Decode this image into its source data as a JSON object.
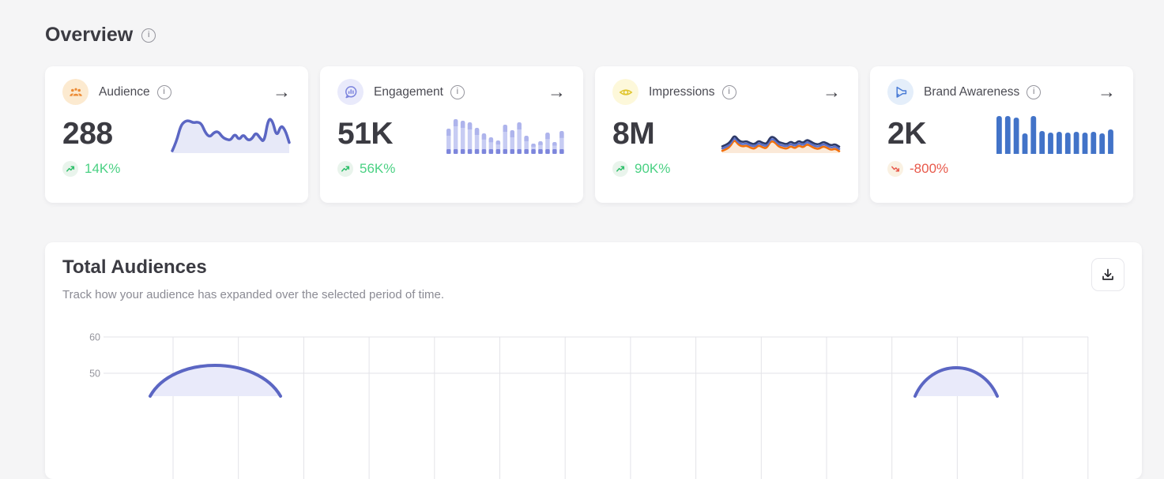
{
  "page": {
    "title": "Overview"
  },
  "stat_cards": [
    {
      "label": "Audience",
      "icon": "audience-icon",
      "value": "288",
      "change": "14K%",
      "trend": "up",
      "spark": {
        "type": "area",
        "color": "#5b66c3",
        "fill": "#e7e9f8",
        "values": [
          6,
          30,
          72,
          84,
          86,
          80,
          82,
          78,
          52,
          42,
          55,
          57,
          42,
          36,
          34,
          52,
          34,
          50,
          34,
          36,
          55,
          40,
          28,
          92,
          86,
          42,
          74,
          62,
          28
        ]
      }
    },
    {
      "label": "Engagement",
      "icon": "engagement-icon",
      "value": "51K",
      "change": "56K%",
      "trend": "up",
      "spark": {
        "type": "stacked-bars",
        "color": "#c7ccf3",
        "cap_color": "#aeb4ec",
        "base_color": "#7d86dc",
        "values": [
          64,
          88,
          84,
          80,
          66,
          52,
          42,
          34,
          74,
          60,
          80,
          46,
          26,
          32,
          54,
          30,
          58
        ]
      }
    },
    {
      "label": "Impressions",
      "icon": "impressions-icon",
      "value": "8M",
      "change": "90K%",
      "trend": "up",
      "spark": {
        "type": "multi-line",
        "series": [
          {
            "name": "orange",
            "color": "#f2700c",
            "fill": "#fbe9d8",
            "values": [
              6,
              10,
              18,
              36,
              22,
              17,
              20,
              14,
              11,
              21,
              15,
              12,
              32,
              29,
              17,
              14,
              11,
              19,
              12,
              21,
              14,
              24,
              18,
              12,
              11,
              18,
              14,
              8,
              12,
              5
            ]
          },
          {
            "name": "blue",
            "color": "#5b70c9",
            "values": [
              12,
              16,
              24,
              42,
              28,
              23,
              26,
              20,
              17,
              27,
              21,
              18,
              38,
              35,
              23,
              20,
              17,
              25,
              18,
              27,
              20,
              30,
              24,
              18,
              17,
              24,
              20,
              14,
              18,
              11
            ]
          },
          {
            "name": "navy",
            "color": "#2e3a68",
            "values": [
              18,
              22,
              30,
              48,
              34,
              29,
              32,
              26,
              23,
              33,
              27,
              24,
              44,
              41,
              29,
              26,
              23,
              31,
              24,
              33,
              26,
              36,
              30,
              24,
              23,
              30,
              26,
              20,
              24,
              17
            ]
          }
        ]
      }
    },
    {
      "label": "Brand Awareness",
      "icon": "megaphone-icon",
      "value": "2K",
      "change": "-800%",
      "trend": "down",
      "spark": {
        "type": "bars",
        "color": "#4273c8",
        "values": [
          96,
          96,
          92,
          52,
          96,
          58,
          54,
          56,
          54,
          56,
          54,
          56,
          52,
          62
        ]
      }
    }
  ],
  "total_audiences": {
    "title": "Total Audiences",
    "subtitle": "Track how your audience has expanded over the selected period of time."
  },
  "chart_data": {
    "type": "area",
    "title": "Total Audiences",
    "yticks_visible": [
      "60",
      "50"
    ],
    "ylim_visible": [
      48,
      62
    ],
    "grid": true,
    "legend": "none",
    "series": [
      {
        "name": "Audiences",
        "visible_peaks": [
          {
            "x_fraction": 0.11,
            "value": 52
          },
          {
            "x_fraction": 0.87,
            "value": 50.5
          }
        ]
      }
    ],
    "colors": {
      "line": "#5b66c3",
      "fill": "#e9eafa",
      "grid": "#e3e3e8",
      "tick_text": "#94949c"
    },
    "render": {
      "x0": 80,
      "x1": 1320,
      "vx0": 162,
      "x_step": 82.7,
      "n_vlines": 15,
      "ytick_y": [
        20,
        66
      ],
      "bumps": [
        {
          "x1": 133,
          "c1x": 162,
          "c2x": 268,
          "x2": 298,
          "cy": 43,
          "base": 95
        },
        {
          "x1": 1101,
          "c1x": 1122,
          "c2x": 1184,
          "x2": 1205,
          "cy": 47,
          "base": 95
        }
      ]
    }
  }
}
